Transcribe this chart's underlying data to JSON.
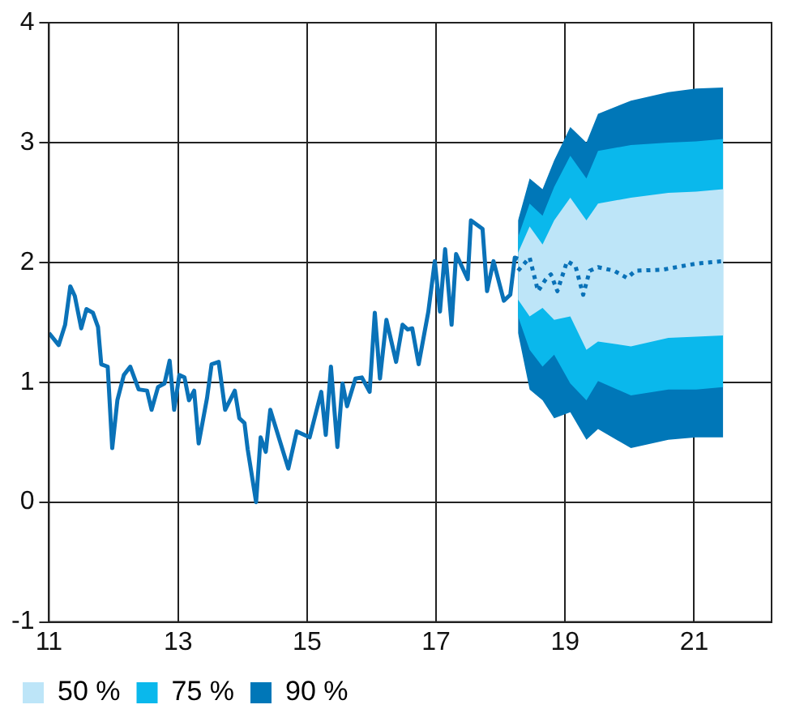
{
  "chart_data": {
    "type": "line",
    "xlim": [
      11,
      22.2
    ],
    "xticks": [
      11,
      13,
      15,
      17,
      19,
      21
    ],
    "ylim": [
      -1,
      4
    ],
    "yticks": [
      -1,
      0,
      1,
      2,
      3,
      4
    ],
    "grid": true,
    "legend": "bottom",
    "series": [
      {
        "name": "90 %",
        "color": "#0077b8",
        "x": [
          18.27,
          18.45,
          18.65,
          18.83,
          19.08,
          19.33,
          19.51,
          20.02,
          20.6,
          21.03,
          21.45
        ],
        "values": [
          null,
          null,
          null,
          null,
          null,
          null,
          null,
          null,
          null,
          null,
          null
        ],
        "lower": [
          1.41,
          0.94,
          0.85,
          0.7,
          0.75,
          0.52,
          0.61,
          0.45,
          0.52,
          0.54,
          0.54
        ],
        "upper": [
          2.35,
          2.7,
          2.61,
          2.85,
          3.13,
          3.0,
          3.24,
          3.35,
          3.42,
          3.45,
          3.46
        ]
      },
      {
        "name": "75 %",
        "color": "#0ab8ec",
        "x": [
          18.27,
          18.45,
          18.65,
          18.83,
          19.08,
          19.33,
          19.51,
          20.02,
          20.6,
          21.03,
          21.45
        ],
        "values": [
          null,
          null,
          null,
          null,
          null,
          null,
          null,
          null,
          null,
          null,
          null
        ],
        "lower": [
          1.55,
          1.27,
          1.13,
          1.23,
          0.99,
          0.85,
          1.01,
          0.89,
          0.94,
          0.94,
          0.96
        ],
        "upper": [
          2.21,
          2.49,
          2.39,
          2.63,
          2.89,
          2.7,
          2.93,
          2.98,
          3.0,
          3.01,
          3.03
        ]
      },
      {
        "name": "50 %",
        "color": "#bde5f8",
        "x": [
          18.27,
          18.45,
          18.65,
          18.83,
          19.08,
          19.33,
          19.51,
          20.02,
          20.6,
          21.03,
          21.45
        ],
        "values": [
          null,
          null,
          null,
          null,
          null,
          null,
          null,
          null,
          null,
          null,
          null
        ],
        "lower": [
          1.69,
          1.55,
          1.62,
          1.52,
          1.55,
          1.27,
          1.34,
          1.3,
          1.37,
          1.38,
          1.39
        ],
        "upper": [
          2.08,
          2.3,
          2.15,
          2.35,
          2.54,
          2.35,
          2.49,
          2.54,
          2.58,
          2.59,
          2.61
        ]
      },
      {
        "type": "line",
        "color": "#0a72b8",
        "line_style": "solid",
        "x": [
          11.0,
          11.15,
          11.25,
          11.33,
          11.4,
          11.5,
          11.58,
          11.68,
          11.76,
          11.81,
          11.91,
          11.98,
          12.06,
          12.16,
          12.26,
          12.39,
          12.52,
          12.59,
          12.69,
          12.79,
          12.87,
          12.94,
          13.02,
          13.1,
          13.17,
          13.25,
          13.32,
          13.45,
          13.52,
          13.63,
          13.73,
          13.88,
          13.95,
          14.03,
          14.08,
          14.21,
          14.28,
          14.36,
          14.43,
          14.59,
          14.71,
          14.84,
          15.04,
          15.22,
          15.29,
          15.37,
          15.47,
          15.55,
          15.62,
          15.75,
          15.85,
          15.97,
          16.05,
          16.13,
          16.23,
          16.38,
          16.48,
          16.56,
          16.63,
          16.73,
          16.88,
          16.98,
          17.06,
          17.14,
          17.24,
          17.31,
          17.49,
          17.54,
          17.72,
          17.79,
          17.89,
          18.05,
          18.15,
          18.22,
          18.27
        ],
        "values": [
          1.41,
          1.31,
          1.48,
          1.8,
          1.72,
          1.45,
          1.61,
          1.58,
          1.46,
          1.15,
          1.13,
          0.45,
          0.85,
          1.06,
          1.13,
          0.94,
          0.93,
          0.77,
          0.96,
          0.99,
          1.18,
          0.77,
          1.06,
          1.04,
          0.85,
          0.93,
          0.49,
          0.87,
          1.15,
          1.17,
          0.77,
          0.93,
          0.7,
          0.66,
          0.44,
          0.0,
          0.54,
          0.42,
          0.77,
          0.49,
          0.28,
          0.59,
          0.54,
          0.92,
          0.56,
          1.13,
          0.46,
          0.99,
          0.8,
          1.03,
          1.04,
          0.92,
          1.58,
          1.03,
          1.52,
          1.17,
          1.48,
          1.44,
          1.45,
          1.15,
          1.59,
          2.01,
          1.59,
          2.11,
          1.48,
          2.07,
          1.86,
          2.35,
          2.28,
          1.76,
          2.01,
          1.68,
          1.73,
          2.04,
          2.03
        ]
      },
      {
        "color": "#0a72b8",
        "line_style": "dotted",
        "x": [
          18.27,
          18.45,
          18.58,
          18.7,
          18.78,
          18.88,
          19.03,
          19.16,
          19.28,
          19.38,
          19.51,
          19.76,
          19.96,
          20.09,
          20.52,
          21.03,
          21.43
        ],
        "values": [
          1.93,
          2.04,
          1.76,
          1.86,
          1.9,
          1.76,
          2.01,
          1.97,
          1.73,
          1.93,
          1.96,
          1.93,
          1.87,
          1.93,
          1.94,
          1.99,
          2.01
        ]
      }
    ]
  }
}
